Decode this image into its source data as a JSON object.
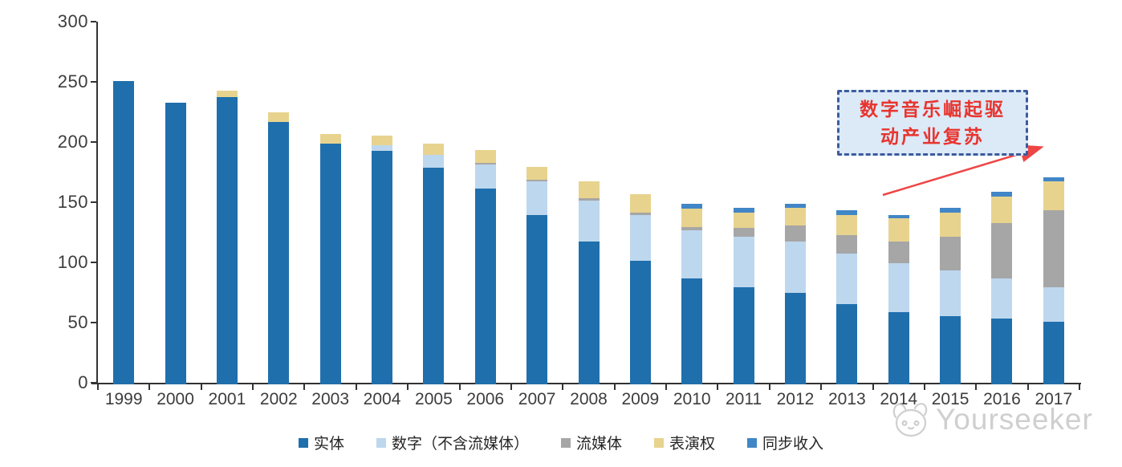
{
  "chart_data": {
    "type": "bar",
    "stacked": true,
    "title": "",
    "xlabel": "",
    "ylabel": "",
    "ylim": [
      0,
      300
    ],
    "y_ticks": [
      0,
      50,
      100,
      150,
      200,
      250,
      300
    ],
    "grid": false,
    "legend_position": "bottom",
    "categories": [
      "1999",
      "2000",
      "2001",
      "2002",
      "2003",
      "2004",
      "2005",
      "2006",
      "2007",
      "2008",
      "2009",
      "2010",
      "2011",
      "2012",
      "2013",
      "2014",
      "2015",
      "2016",
      "2017"
    ],
    "series": [
      {
        "name": "实体",
        "color": "#1f6fad",
        "values": [
          252,
          234,
          239,
          218,
          200,
          194,
          180,
          163,
          141,
          119,
          103,
          88,
          81,
          76,
          67,
          60,
          57,
          55,
          52
        ]
      },
      {
        "name": "数字（不含流媒体）",
        "color": "#bdd7ee",
        "values": [
          0,
          0,
          0,
          0,
          0,
          5,
          11,
          20,
          28,
          34,
          38,
          40,
          42,
          43,
          42,
          41,
          38,
          33,
          29
        ]
      },
      {
        "name": "流媒体",
        "color": "#a6a6a6",
        "values": [
          0,
          0,
          0,
          0,
          0,
          0,
          0,
          1,
          1,
          2,
          2,
          3,
          7,
          13,
          15,
          18,
          28,
          46,
          64
        ]
      },
      {
        "name": "表演权",
        "color": "#e8d38e",
        "values": [
          0,
          0,
          5,
          8,
          8,
          8,
          9,
          11,
          11,
          14,
          15,
          15,
          13,
          15,
          17,
          19,
          20,
          22,
          24
        ]
      },
      {
        "name": "同步收入",
        "color": "#4186c6",
        "values": [
          0,
          0,
          0,
          0,
          0,
          0,
          0,
          0,
          0,
          0,
          0,
          4,
          4,
          3,
          4,
          3,
          4,
          4,
          3
        ]
      }
    ]
  },
  "annotation": {
    "lines": [
      "数字音乐崛起驱",
      "动产业复苏"
    ],
    "text_color": "#e8342e",
    "box_fill": "#dce9f7",
    "box_border": "#3c5c9e",
    "arrow_color": "#ef4545"
  },
  "watermark": {
    "text": "Yourseeker",
    "logo": "cat-logo-icon",
    "color": "#c7c7c7"
  },
  "axis": {
    "line_color": "#333333",
    "label_color": "#3d3d3d"
  }
}
